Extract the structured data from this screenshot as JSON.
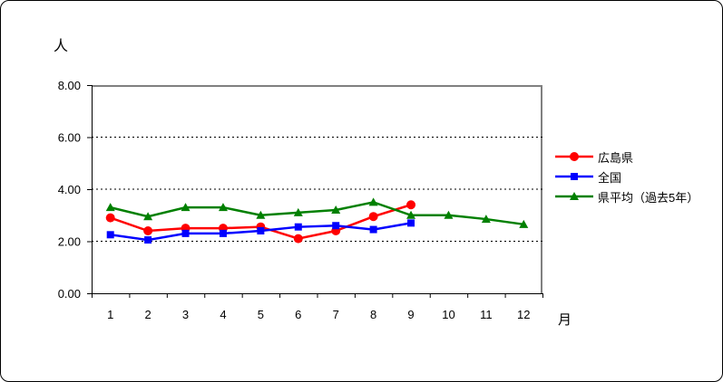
{
  "window": {
    "background_color": "#FFFFFF",
    "frame_border_color": "#000000",
    "plot_border_color": "#808080",
    "gridline_color": "#000000"
  },
  "chart_data": {
    "type": "line",
    "title": "",
    "ylabel": "人",
    "xlabel": "月",
    "x": [
      1,
      2,
      3,
      4,
      5,
      6,
      7,
      8,
      9,
      10,
      11,
      12
    ],
    "xticks": [
      "1",
      "2",
      "3",
      "4",
      "5",
      "6",
      "7",
      "8",
      "9",
      "10",
      "11",
      "12"
    ],
    "ylim": [
      0,
      8
    ],
    "ytick_step": 2,
    "yticks": [
      "0.00",
      "2.00",
      "4.00",
      "6.00",
      "8.00"
    ],
    "grid": "horizontal-dashed",
    "legend_position": "right",
    "series": [
      {
        "name": "広島県",
        "color": "#FF0000",
        "marker": "circle",
        "values": [
          2.9,
          2.4,
          2.5,
          2.5,
          2.55,
          2.1,
          2.4,
          2.95,
          3.4,
          null,
          null,
          null
        ]
      },
      {
        "name": "全国",
        "color": "#0000FF",
        "marker": "square",
        "values": [
          2.25,
          2.05,
          2.3,
          2.3,
          2.4,
          2.55,
          2.6,
          2.45,
          2.7,
          null,
          null,
          null
        ]
      },
      {
        "name": "県平均（過去5年）",
        "color": "#008000",
        "marker": "triangle",
        "values": [
          3.3,
          2.95,
          3.3,
          3.3,
          3.0,
          3.1,
          3.2,
          3.5,
          3.0,
          3.0,
          2.85,
          2.65
        ]
      }
    ]
  }
}
